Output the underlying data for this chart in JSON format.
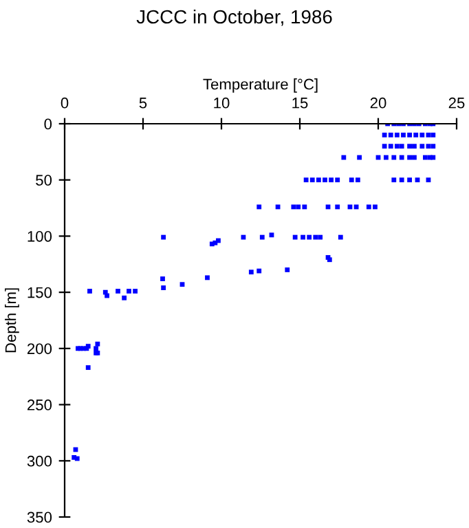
{
  "chart_data": {
    "type": "scatter",
    "title": "JCCC in October, 1986",
    "xlabel": "Temperature [°C]",
    "ylabel": "Depth [m]",
    "xlim": [
      0,
      25
    ],
    "xticks": [
      0,
      5,
      10,
      15,
      20,
      25
    ],
    "ylim": [
      350,
      0
    ],
    "yticks": [
      0,
      50,
      100,
      150,
      200,
      250,
      300,
      350
    ],
    "grid": false,
    "marker": "square",
    "series": [
      {
        "color": "#0000ff",
        "x": [
          20.6,
          21,
          21.3,
          21.6,
          22,
          22.3,
          22.6,
          23,
          23.3,
          23.5,
          20.4,
          20.8,
          21.2,
          21.6,
          22,
          22.4,
          22.8,
          23.2,
          23.5,
          20.4,
          20.8,
          21.2,
          21.5,
          22,
          22.3,
          22.8,
          23.2,
          23.5,
          17.8,
          18.8,
          20,
          20.5,
          21,
          21.5,
          22,
          22.3,
          23,
          23.3,
          23.5,
          15.4,
          15.8,
          16.2,
          16.6,
          17,
          17.4,
          18.3,
          18.7,
          21,
          21.5,
          22,
          22.5,
          23.2,
          12.4,
          13.6,
          14.6,
          14.9,
          15.3,
          16.8,
          17.4,
          18.2,
          18.6,
          19.4,
          19.8,
          6.3,
          11.4,
          12.6,
          13.2,
          14.7,
          15.2,
          15.6,
          16,
          16.3,
          17.6,
          9.4,
          9.6,
          9.8,
          16.8,
          16.9,
          11.9,
          12.4,
          14.2,
          6.25,
          6.3,
          7.5,
          9.1,
          1.6,
          2.6,
          2.7,
          3.4,
          3.8,
          4.1,
          4.5,
          0.85,
          1.0,
          1.2,
          1.4,
          1.5,
          2.0,
          2.1,
          2.0,
          2.1,
          1.5,
          0.7,
          0.6,
          0.8
        ],
        "values": [
          0,
          0,
          0,
          0,
          0,
          0,
          0,
          0,
          0,
          0,
          10,
          10,
          10,
          10,
          10,
          10,
          10,
          10,
          10,
          20,
          20,
          20,
          20,
          20,
          20,
          20,
          20,
          20,
          30,
          30,
          30,
          30,
          30,
          30,
          30,
          30,
          30,
          30,
          30,
          50,
          50,
          50,
          50,
          50,
          50,
          50,
          50,
          50,
          50,
          50,
          50,
          50,
          74,
          74,
          74,
          74,
          74,
          74,
          74,
          74,
          74,
          74,
          74,
          101,
          101,
          101,
          99,
          101,
          101,
          101,
          101,
          101,
          101,
          107,
          106,
          104,
          119,
          121,
          132,
          131,
          130,
          138,
          146,
          143,
          137,
          149,
          150,
          153,
          149,
          155,
          149,
          149,
          200,
          200,
          200,
          200,
          198,
          200,
          196,
          204,
          204,
          217,
          290,
          297,
          298
        ]
      }
    ]
  }
}
